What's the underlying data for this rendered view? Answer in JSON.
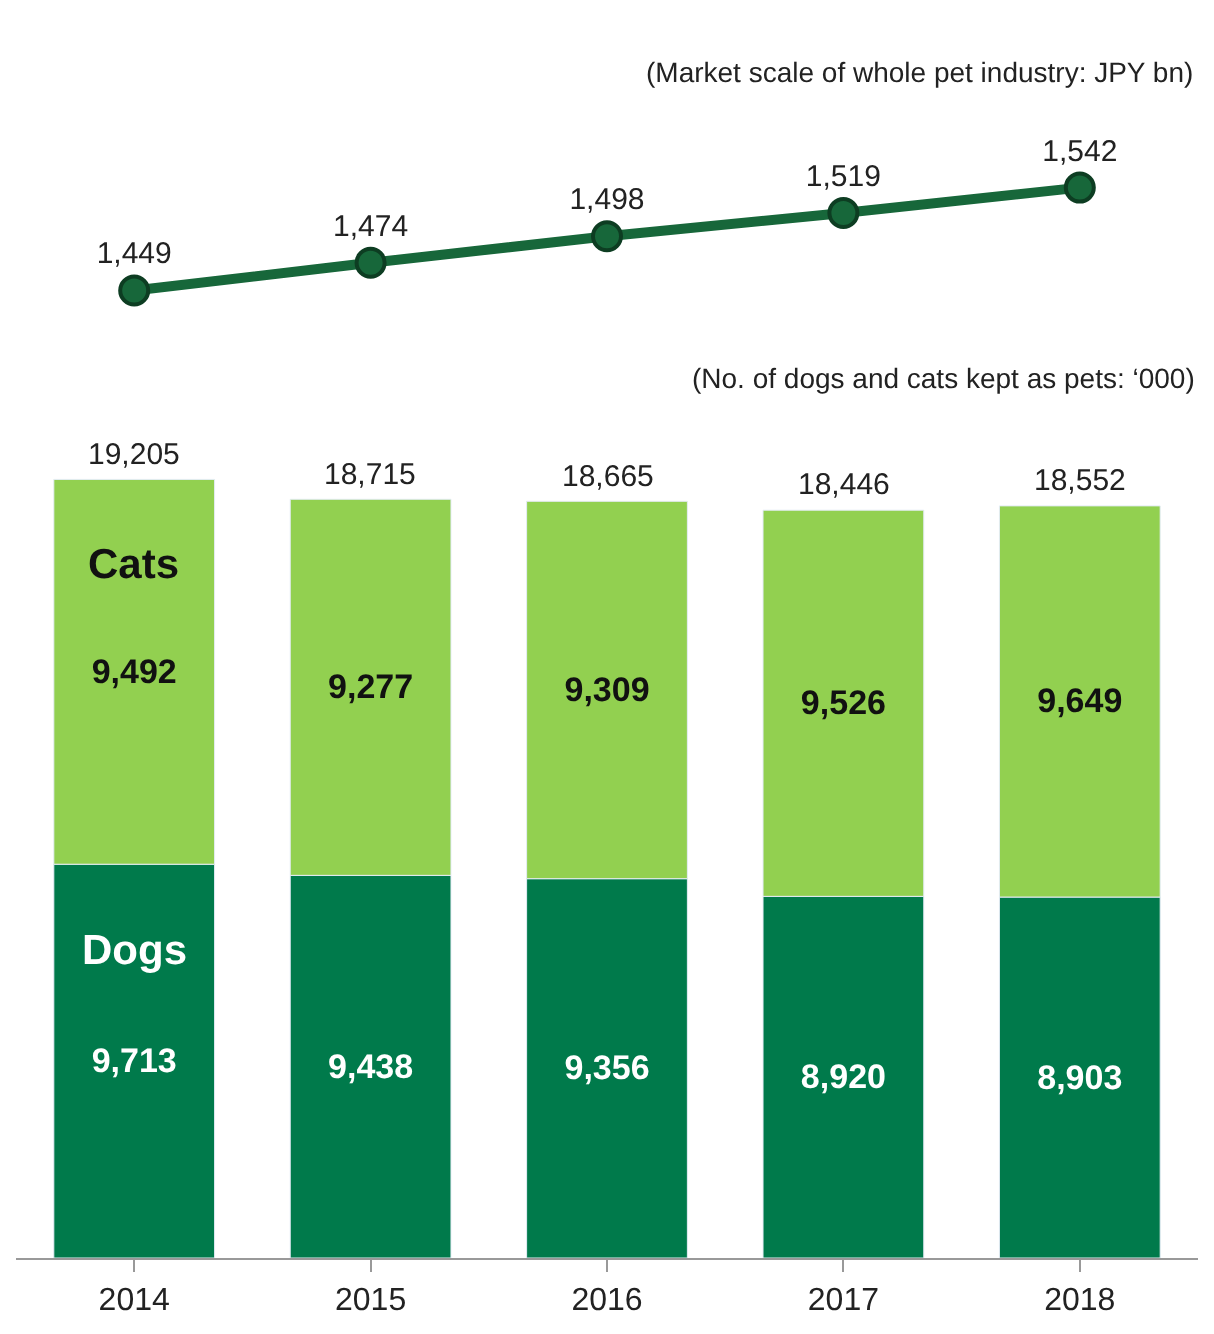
{
  "chart_data": [
    {
      "type": "line",
      "title": "(Market scale of whole pet industry: JPY bn)",
      "categories": [
        "2014",
        "2015",
        "2016",
        "2017",
        "2018"
      ],
      "series": [
        {
          "color": "#17673a",
          "values": [
            1449,
            1474,
            1498,
            1519,
            1542
          ],
          "value_labels": [
            "1,449",
            "1,474",
            "1,498",
            "1,519",
            "1,542"
          ]
        }
      ],
      "marker": "circle",
      "tick_labels": false
    },
    {
      "type": "bar",
      "title": "(No. of dogs and cats kept as pets: ‘000)",
      "categories": [
        "2014",
        "2015",
        "2016",
        "2017",
        "2018"
      ],
      "stacked": true,
      "series": [
        {
          "name": "Dogs",
          "color": "#007a4b",
          "values": [
            9713,
            9438,
            9356,
            8920,
            8903
          ],
          "value_labels": [
            "9,713",
            "9,438",
            "9,356",
            "8,920",
            "8,903"
          ]
        },
        {
          "name": "Cats",
          "color": "#92d050",
          "values": [
            9492,
            9277,
            9309,
            9526,
            9649
          ],
          "value_labels": [
            "9,492",
            "9,277",
            "9,309",
            "9,526",
            "9,649"
          ]
        }
      ],
      "totals": [
        "19,205",
        "18,715",
        "18,665",
        "18,446",
        "18,552"
      ],
      "tick_labels": "x"
    }
  ]
}
